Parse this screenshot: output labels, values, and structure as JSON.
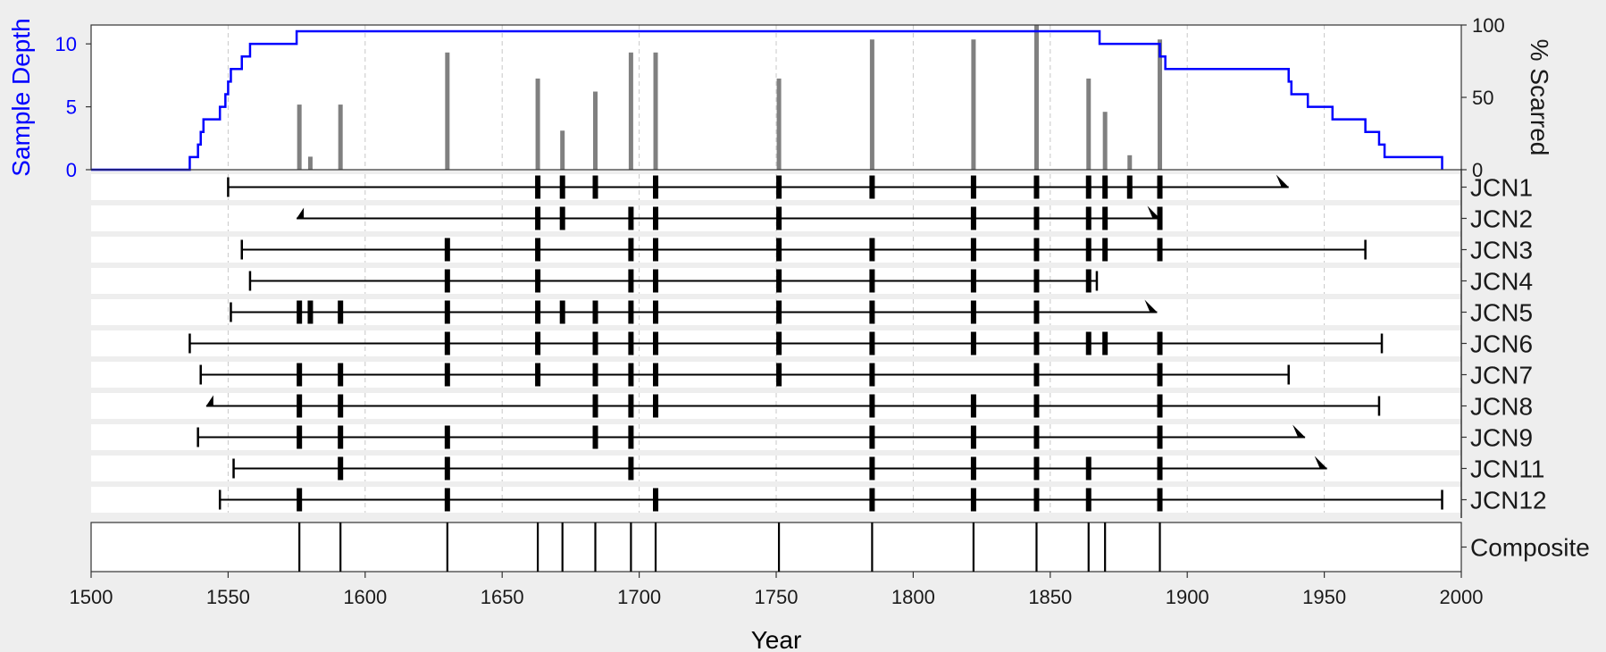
{
  "chart_data": {
    "type": "fire-history",
    "xlabel": "Year",
    "xlim": [
      1500,
      2000
    ],
    "xticks": [
      1500,
      1550,
      1600,
      1650,
      1700,
      1750,
      1800,
      1850,
      1900,
      1950,
      2000
    ],
    "sample_depth": {
      "ylabel": "Sample Depth",
      "ylim": [
        0,
        11.5
      ],
      "yticks": [
        0,
        5,
        10
      ],
      "color": "#0000ff",
      "steps": [
        [
          1500,
          0
        ],
        [
          1536,
          1
        ],
        [
          1539,
          2
        ],
        [
          1540,
          3
        ],
        [
          1541,
          4
        ],
        [
          1547,
          5
        ],
        [
          1549,
          6
        ],
        [
          1550,
          7
        ],
        [
          1551,
          8
        ],
        [
          1555,
          9
        ],
        [
          1558,
          10
        ],
        [
          1575,
          11
        ],
        [
          1868,
          10
        ],
        [
          1890,
          9
        ],
        [
          1892,
          8
        ],
        [
          1937,
          7
        ],
        [
          1938,
          6
        ],
        [
          1944,
          5
        ],
        [
          1953,
          4
        ],
        [
          1965,
          3
        ],
        [
          1970,
          2
        ],
        [
          1972,
          1
        ],
        [
          1993,
          0
        ]
      ]
    },
    "percent_scarred": {
      "ylabel": "% Scarred",
      "ylim": [
        0,
        100
      ],
      "yticks": [
        0,
        50,
        100
      ],
      "color": "#808080",
      "bars": [
        [
          1576,
          45
        ],
        [
          1580,
          9
        ],
        [
          1591,
          45
        ],
        [
          1630,
          81
        ],
        [
          1663,
          63
        ],
        [
          1672,
          27
        ],
        [
          1684,
          54
        ],
        [
          1697,
          81
        ],
        [
          1706,
          81
        ],
        [
          1751,
          63
        ],
        [
          1785,
          90
        ],
        [
          1822,
          90
        ],
        [
          1845,
          100
        ],
        [
          1864,
          63
        ],
        [
          1870,
          40
        ],
        [
          1879,
          10
        ],
        [
          1890,
          90
        ]
      ]
    },
    "series": [
      {
        "name": "JCN1",
        "start": 1550,
        "end": 1937,
        "start_type": "pith",
        "end_type": "bark",
        "scars": [
          1663,
          1672,
          1684,
          1706,
          1751,
          1785,
          1822,
          1845,
          1864,
          1870,
          1879,
          1890
        ]
      },
      {
        "name": "JCN2",
        "start": 1575,
        "end": 1890,
        "start_type": "inner",
        "end_type": "bark",
        "scars": [
          1663,
          1672,
          1697,
          1706,
          1751,
          1822,
          1845,
          1864,
          1870,
          1890
        ]
      },
      {
        "name": "JCN3",
        "start": 1555,
        "end": 1965,
        "start_type": "pith",
        "end_type": "bark_bar",
        "scars": [
          1630,
          1663,
          1697,
          1706,
          1751,
          1785,
          1822,
          1845,
          1864,
          1870,
          1890
        ]
      },
      {
        "name": "JCN4",
        "start": 1558,
        "end": 1867,
        "start_type": "pith",
        "end_type": "bark_bar",
        "scars": [
          1630,
          1663,
          1697,
          1706,
          1751,
          1785,
          1822,
          1845,
          1864
        ]
      },
      {
        "name": "JCN5",
        "start": 1551,
        "end": 1889,
        "start_type": "pith",
        "end_type": "bark",
        "scars": [
          1576,
          1580,
          1591,
          1630,
          1663,
          1672,
          1684,
          1697,
          1706,
          1751,
          1785,
          1822,
          1845
        ]
      },
      {
        "name": "JCN6",
        "start": 1536,
        "end": 1971,
        "start_type": "pith",
        "end_type": "bark_bar",
        "scars": [
          1630,
          1663,
          1684,
          1697,
          1706,
          1751,
          1785,
          1822,
          1845,
          1864,
          1870,
          1890
        ]
      },
      {
        "name": "JCN7",
        "start": 1540,
        "end": 1937,
        "start_type": "pith",
        "end_type": "bark_bar",
        "scars": [
          1576,
          1591,
          1630,
          1663,
          1684,
          1697,
          1706,
          1751,
          1785,
          1845,
          1890
        ]
      },
      {
        "name": "JCN8",
        "start": 1542,
        "end": 1970,
        "start_type": "inner",
        "end_type": "bark_bar",
        "scars": [
          1576,
          1591,
          1684,
          1697,
          1706,
          1785,
          1822,
          1845,
          1890
        ]
      },
      {
        "name": "JCN9",
        "start": 1539,
        "end": 1943,
        "start_type": "pith",
        "end_type": "bark",
        "scars": [
          1576,
          1591,
          1630,
          1684,
          1697,
          1785,
          1822,
          1845,
          1890
        ]
      },
      {
        "name": "JCN11",
        "start": 1552,
        "end": 1951,
        "start_type": "pith",
        "end_type": "bark",
        "scars": [
          1591,
          1630,
          1697,
          1785,
          1822,
          1845,
          1864,
          1890
        ]
      },
      {
        "name": "JCN12",
        "start": 1547,
        "end": 1993,
        "start_type": "pith",
        "end_type": "bark_bar",
        "scars": [
          1576,
          1630,
          1706,
          1785,
          1822,
          1845,
          1864,
          1890
        ]
      }
    ],
    "composite": {
      "label": "Composite",
      "events": [
        1576,
        1591,
        1630,
        1663,
        1672,
        1684,
        1697,
        1706,
        1751,
        1785,
        1822,
        1845,
        1864,
        1870,
        1890
      ]
    },
    "grid": true
  }
}
